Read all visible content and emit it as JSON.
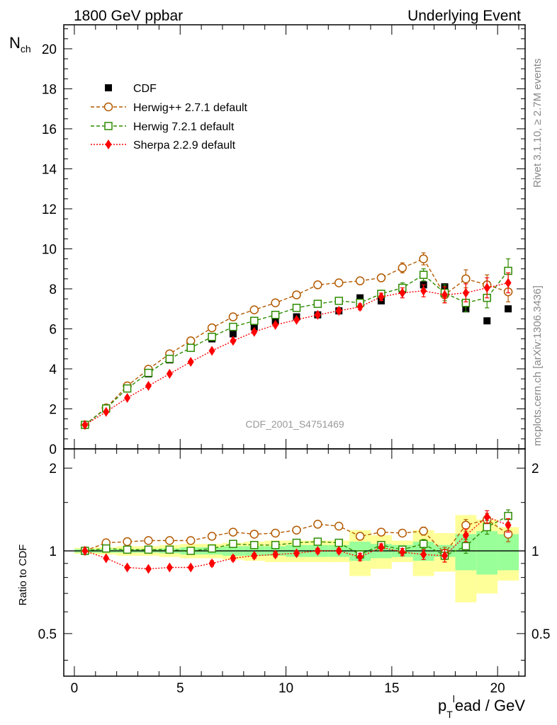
{
  "header": {
    "left_title": "1800 GeV ppbar",
    "right_title": "Underlying Event"
  },
  "side_labels": {
    "rivet": "Rivet 3.1.10, ≥ 2.7M events",
    "mcplots": "mcplots.cern.ch [arXiv:1306.3436]"
  },
  "watermark": "CDF_2001_S4751469",
  "colors": {
    "cdf": "#000000",
    "herwigpp": "#b35900",
    "herwig7": "#2e8b00",
    "sherpa": "#ff0000",
    "band_yellow": "#ffff99",
    "band_green": "#99ff99"
  },
  "chart_data": [
    {
      "type": "scatter",
      "panel": "main",
      "ylabel": "N",
      "ylabel_sub": "ch",
      "xlim": [
        -0.5,
        21.3
      ],
      "ylim": [
        0,
        21.2
      ],
      "yticks": [
        0,
        2,
        4,
        6,
        8,
        10,
        12,
        14,
        16,
        18,
        20
      ],
      "legend_position": "top-left",
      "x": [
        0.5,
        1.5,
        2.5,
        3.5,
        4.5,
        5.5,
        6.5,
        7.5,
        8.5,
        9.5,
        10.5,
        11.5,
        12.5,
        13.5,
        14.5,
        15.5,
        16.5,
        17.5,
        18.5,
        19.5,
        20.5
      ],
      "series": [
        {
          "name": "CDF",
          "key": "cdf",
          "style": "marker",
          "values": [
            1.2,
            2.0,
            3.0,
            3.75,
            4.45,
            5.05,
            5.5,
            5.75,
            6.1,
            6.4,
            6.6,
            6.7,
            6.9,
            7.55,
            7.4,
            7.95,
            8.2,
            8.1,
            7.0,
            6.4,
            7.0
          ],
          "errors": [
            0.05,
            0.05,
            0.05,
            0.05,
            0.05,
            0.05,
            0.05,
            0.05,
            0.05,
            0.05,
            0.05,
            0.05,
            0.05,
            0.05,
            0.05,
            0.05,
            0.1,
            0.1,
            0.1,
            0.1,
            0.1
          ]
        },
        {
          "name": "Herwig++ 2.7.1 default",
          "key": "herwigpp",
          "style": "dashed-circle",
          "values": [
            1.2,
            2.05,
            3.15,
            3.98,
            4.75,
            5.4,
            6.05,
            6.6,
            6.95,
            7.3,
            7.7,
            8.2,
            8.3,
            8.4,
            8.55,
            9.05,
            9.5,
            7.7,
            8.5,
            8.2,
            7.85
          ],
          "errors": [
            0.02,
            0.02,
            0.03,
            0.03,
            0.03,
            0.03,
            0.04,
            0.05,
            0.06,
            0.07,
            0.08,
            0.1,
            0.12,
            0.15,
            0.18,
            0.25,
            0.3,
            0.4,
            0.45,
            0.5,
            0.5
          ]
        },
        {
          "name": "Herwig 7.2.1 default",
          "key": "herwig7",
          "style": "dashed-square",
          "values": [
            1.2,
            2.02,
            3.02,
            3.8,
            4.5,
            5.05,
            5.6,
            6.1,
            6.4,
            6.7,
            7.05,
            7.25,
            7.4,
            7.3,
            7.75,
            8.05,
            8.7,
            7.8,
            7.3,
            7.55,
            8.9
          ],
          "errors": [
            0.02,
            0.02,
            0.03,
            0.03,
            0.03,
            0.03,
            0.04,
            0.05,
            0.06,
            0.07,
            0.08,
            0.1,
            0.12,
            0.15,
            0.18,
            0.25,
            0.3,
            0.4,
            0.45,
            0.5,
            0.6
          ]
        },
        {
          "name": "Sherpa 2.2.9 default",
          "key": "sherpa",
          "style": "dotted-diamond",
          "values": [
            1.2,
            1.85,
            2.55,
            3.15,
            3.75,
            4.35,
            4.9,
            5.4,
            5.85,
            6.2,
            6.45,
            6.7,
            6.9,
            7.1,
            7.6,
            7.8,
            7.9,
            7.7,
            7.8,
            8.05,
            8.3
          ],
          "errors": [
            0.02,
            0.02,
            0.03,
            0.03,
            0.03,
            0.03,
            0.04,
            0.05,
            0.06,
            0.07,
            0.08,
            0.1,
            0.12,
            0.15,
            0.18,
            0.25,
            0.3,
            0.4,
            0.45,
            0.5,
            0.5
          ]
        }
      ]
    },
    {
      "type": "scatter",
      "panel": "ratio",
      "ylabel": "Ratio to CDF",
      "xlabel": "p",
      "xlabel_sub": "T",
      "xlabel_sup": "l",
      "xlabel_rest": "ead / GeV",
      "xlim": [
        -0.5,
        21.3
      ],
      "ylim": [
        0.35,
        2.35
      ],
      "yticks": [
        0.5,
        1,
        2
      ],
      "xticks": [
        0,
        5,
        10,
        15,
        20
      ],
      "x": [
        0.5,
        1.5,
        2.5,
        3.5,
        4.5,
        5.5,
        6.5,
        7.5,
        8.5,
        9.5,
        10.5,
        11.5,
        12.5,
        13.5,
        14.5,
        15.5,
        16.5,
        17.5,
        18.5,
        19.5,
        20.5
      ],
      "bands": {
        "green_half": [
          0.015,
          0.015,
          0.015,
          0.015,
          0.02,
          0.03,
          0.03,
          0.04,
          0.04,
          0.04,
          0.05,
          0.05,
          0.05,
          0.08,
          0.06,
          0.05,
          0.08,
          0.05,
          0.15,
          0.18,
          0.15
        ],
        "yellow_half": [
          0.025,
          0.03,
          0.04,
          0.04,
          0.05,
          0.06,
          0.06,
          0.07,
          0.08,
          0.09,
          0.09,
          0.09,
          0.09,
          0.19,
          0.14,
          0.09,
          0.19,
          0.16,
          0.35,
          0.3,
          0.22
        ]
      },
      "series": [
        {
          "name": "Herwig++ 2.7.1 default",
          "key": "herwigpp",
          "style": "dashed-circle",
          "values": [
            1.0,
            1.07,
            1.08,
            1.09,
            1.09,
            1.09,
            1.13,
            1.17,
            1.15,
            1.16,
            1.19,
            1.25,
            1.23,
            1.13,
            1.17,
            1.16,
            1.18,
            0.98,
            1.24,
            1.3,
            1.15
          ],
          "errors": [
            0.01,
            0.01,
            0.01,
            0.01,
            0.01,
            0.01,
            0.02,
            0.02,
            0.02,
            0.02,
            0.02,
            0.02,
            0.02,
            0.03,
            0.03,
            0.03,
            0.04,
            0.05,
            0.06,
            0.07,
            0.07
          ]
        },
        {
          "name": "Herwig 7.2.1 default",
          "key": "herwig7",
          "style": "dashed-square",
          "values": [
            1.0,
            1.02,
            1.01,
            1.01,
            1.01,
            1.0,
            1.02,
            1.06,
            1.05,
            1.05,
            1.07,
            1.08,
            1.07,
            0.97,
            1.05,
            1.01,
            1.06,
            0.96,
            1.04,
            1.22,
            1.34
          ],
          "errors": [
            0.01,
            0.01,
            0.01,
            0.01,
            0.01,
            0.01,
            0.02,
            0.02,
            0.02,
            0.02,
            0.02,
            0.02,
            0.02,
            0.03,
            0.03,
            0.03,
            0.04,
            0.05,
            0.06,
            0.07,
            0.07
          ]
        },
        {
          "name": "Sherpa 2.2.9 default",
          "key": "sherpa",
          "style": "dotted-diamond",
          "values": [
            1.0,
            0.94,
            0.87,
            0.86,
            0.87,
            0.87,
            0.9,
            0.94,
            0.96,
            0.97,
            0.98,
            1.0,
            1.0,
            0.95,
            1.03,
            0.99,
            0.97,
            0.96,
            1.14,
            1.33,
            1.24
          ],
          "errors": [
            0.01,
            0.01,
            0.01,
            0.01,
            0.01,
            0.01,
            0.02,
            0.02,
            0.02,
            0.02,
            0.02,
            0.02,
            0.02,
            0.03,
            0.03,
            0.03,
            0.04,
            0.05,
            0.06,
            0.07,
            0.07
          ]
        }
      ]
    }
  ]
}
